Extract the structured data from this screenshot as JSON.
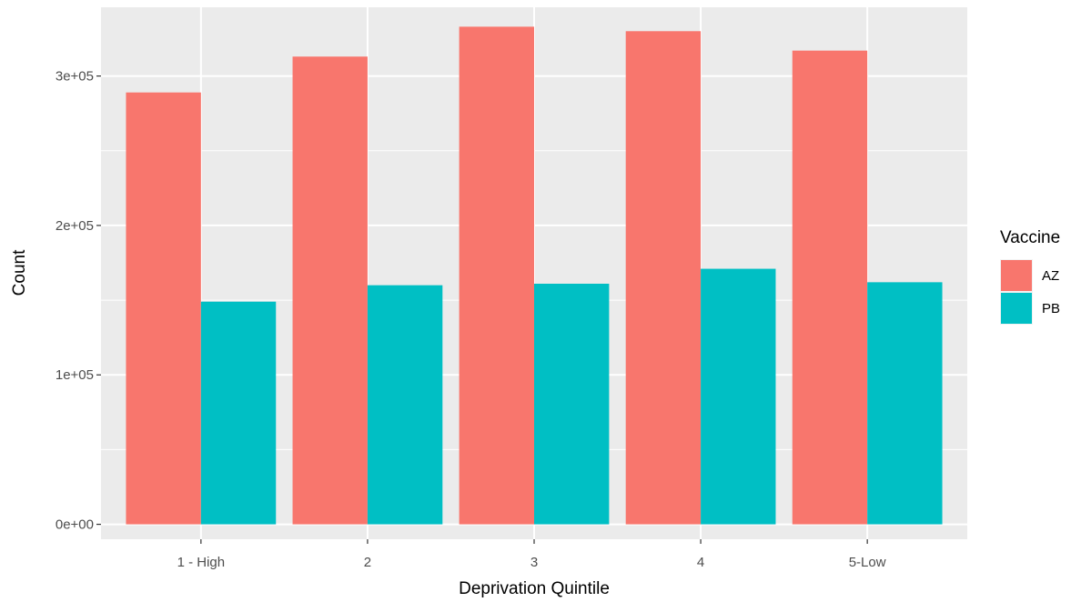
{
  "chart_data": {
    "type": "bar",
    "title": "",
    "xlabel": "Deprivation Quintile",
    "ylabel": "Count",
    "categories": [
      "1 - High",
      "2",
      "3",
      "4",
      "5-Low"
    ],
    "series": [
      {
        "name": "AZ",
        "color": "#F8766D",
        "values": [
          289000,
          313000,
          333000,
          330000,
          317000
        ]
      },
      {
        "name": "PB",
        "color": "#00BFC4",
        "values": [
          149000,
          160000,
          161000,
          171000,
          162000
        ]
      }
    ],
    "ylim": [
      -10000,
      346000
    ],
    "yticks": [
      0,
      100000,
      200000,
      300000
    ],
    "ytick_labels": [
      "0e+00",
      "1e+05",
      "2e+05",
      "3e+05"
    ],
    "grid": true,
    "legend": {
      "title": "Vaccine",
      "position": "right"
    },
    "panel_background": "#EBEBEB"
  }
}
